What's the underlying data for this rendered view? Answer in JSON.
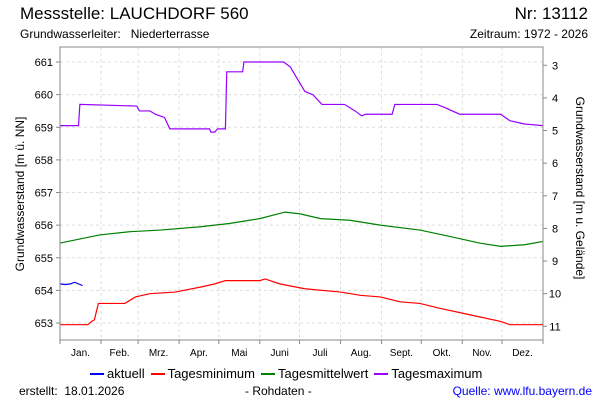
{
  "header": {
    "title": "Messstelle: LAUCHDORF 560",
    "nr": "Nr: 13112",
    "aquifer_label": "Grundwasserleiter:   Niederterrasse",
    "period": "Zeitraum: 1972 - 2026"
  },
  "footer": {
    "created": "erstellt:  18.01.2026",
    "note": "- Rohdaten -",
    "source": "Quelle: www.lfu.bayern.de"
  },
  "chart_data": {
    "type": "line",
    "ylabel": "Grundwasserstand [m ü. NN]",
    "y2label": "Grundwasserstand [m u. Gelände]",
    "ylim": [
      652.48,
      661.46
    ],
    "y2lim": [
      2.44,
      11.42
    ],
    "yticks": [
      653,
      654,
      655,
      656,
      657,
      658,
      659,
      660,
      661
    ],
    "y2ticks": [
      3,
      4,
      5,
      6,
      7,
      8,
      9,
      10,
      11
    ],
    "xlim": [
      0,
      365
    ],
    "x_unit": "day of year",
    "month_labels": [
      "Jan.",
      "Feb.",
      "Mrz.",
      "Apr.",
      "Mai",
      "Juni",
      "Juli",
      "Aug.",
      "Sept.",
      "Okt.",
      "Nov.",
      "Dez."
    ],
    "grid": true,
    "legend_position": "bottom",
    "series": [
      {
        "name": "aktuell",
        "color": "#0000ff",
        "points": [
          [
            0,
            654.2
          ],
          [
            4,
            654.18
          ],
          [
            8,
            654.2
          ],
          [
            11,
            654.25
          ],
          [
            14,
            654.2
          ],
          [
            17,
            654.15
          ]
        ]
      },
      {
        "name": "Tagesminimum",
        "color": "#ff0000",
        "points": [
          [
            0,
            652.95
          ],
          [
            21,
            652.95
          ],
          [
            24,
            653.05
          ],
          [
            26,
            653.1
          ],
          [
            29,
            653.6
          ],
          [
            49,
            653.6
          ],
          [
            53,
            653.7
          ],
          [
            57,
            653.8
          ],
          [
            68,
            653.9
          ],
          [
            87,
            653.95
          ],
          [
            106,
            654.1
          ],
          [
            117,
            654.2
          ],
          [
            125,
            654.3
          ],
          [
            151,
            654.3
          ],
          [
            155,
            654.35
          ],
          [
            166,
            654.2
          ],
          [
            185,
            654.05
          ],
          [
            212,
            653.95
          ],
          [
            227,
            653.85
          ],
          [
            242,
            653.8
          ],
          [
            257,
            653.65
          ],
          [
            272,
            653.6
          ],
          [
            287,
            653.45
          ],
          [
            310,
            653.25
          ],
          [
            333,
            653.05
          ],
          [
            340,
            652.95
          ],
          [
            365,
            652.95
          ]
        ]
      },
      {
        "name": "Tagesmittelwert",
        "color": "#008000",
        "points": [
          [
            0,
            655.45
          ],
          [
            30,
            655.7
          ],
          [
            53,
            655.8
          ],
          [
            76,
            655.85
          ],
          [
            106,
            655.95
          ],
          [
            128,
            656.05
          ],
          [
            151,
            656.2
          ],
          [
            170,
            656.4
          ],
          [
            181,
            656.35
          ],
          [
            197,
            656.2
          ],
          [
            219,
            656.15
          ],
          [
            242,
            656.0
          ],
          [
            272,
            655.85
          ],
          [
            295,
            655.65
          ],
          [
            317,
            655.45
          ],
          [
            333,
            655.35
          ],
          [
            351,
            655.4
          ],
          [
            365,
            655.5
          ]
        ]
      },
      {
        "name": "Tagesmaximum",
        "color": "#9900ff",
        "points": [
          [
            0,
            659.05
          ],
          [
            14,
            659.05
          ],
          [
            15,
            659.7
          ],
          [
            58,
            659.65
          ],
          [
            60,
            659.5
          ],
          [
            68,
            659.5
          ],
          [
            72,
            659.4
          ],
          [
            79,
            659.3
          ],
          [
            83,
            658.95
          ],
          [
            113,
            658.95
          ],
          [
            114,
            658.85
          ],
          [
            117,
            658.85
          ],
          [
            119,
            658.95
          ],
          [
            125,
            658.95
          ],
          [
            126,
            660.7
          ],
          [
            138,
            660.7
          ],
          [
            139,
            661.0
          ],
          [
            169,
            661.0
          ],
          [
            174,
            660.85
          ],
          [
            185,
            660.1
          ],
          [
            191,
            660.0
          ],
          [
            198,
            659.7
          ],
          [
            215,
            659.7
          ],
          [
            223,
            659.5
          ],
          [
            228,
            659.35
          ],
          [
            231,
            659.4
          ],
          [
            251,
            659.4
          ],
          [
            253,
            659.7
          ],
          [
            285,
            659.7
          ],
          [
            291,
            659.6
          ],
          [
            302,
            659.4
          ],
          [
            333,
            659.4
          ],
          [
            340,
            659.2
          ],
          [
            351,
            659.1
          ],
          [
            365,
            659.05
          ]
        ]
      }
    ]
  }
}
